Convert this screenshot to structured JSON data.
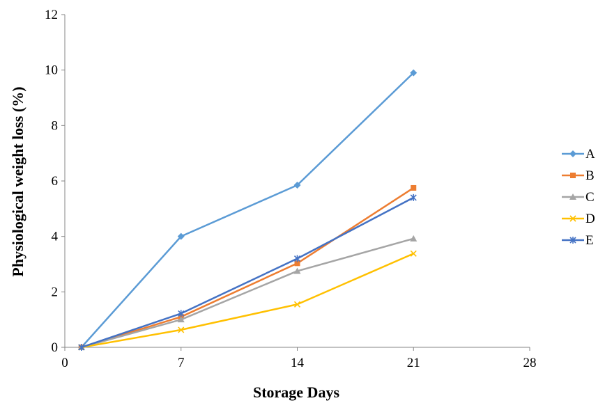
{
  "chart_data": {
    "type": "line",
    "title": "",
    "xlabel": "Storage Days",
    "ylabel": "Physiological weight loss (%)",
    "xlim": [
      0,
      28
    ],
    "ylim": [
      0,
      12
    ],
    "xticks": [
      0,
      7,
      14,
      21,
      28
    ],
    "yticks": [
      0,
      2,
      4,
      6,
      8,
      10,
      12
    ],
    "grid": false,
    "legend_position": "right",
    "x": [
      1,
      7,
      14,
      21
    ],
    "series": [
      {
        "name": "A",
        "values": [
          0,
          4.0,
          5.85,
          9.9
        ],
        "color": "#5B9BD5",
        "marker": "diamond"
      },
      {
        "name": "B",
        "values": [
          0,
          1.1,
          3.03,
          5.75
        ],
        "color": "#ED7D31",
        "marker": "square"
      },
      {
        "name": "C",
        "values": [
          0,
          1.0,
          2.75,
          3.92
        ],
        "color": "#A5A5A5",
        "marker": "triangle"
      },
      {
        "name": "D",
        "values": [
          0,
          0.63,
          1.55,
          3.38
        ],
        "color": "#FFC000",
        "marker": "x"
      },
      {
        "name": "E",
        "values": [
          0,
          1.22,
          3.2,
          5.4
        ],
        "color": "#4472C4",
        "marker": "star"
      }
    ]
  }
}
